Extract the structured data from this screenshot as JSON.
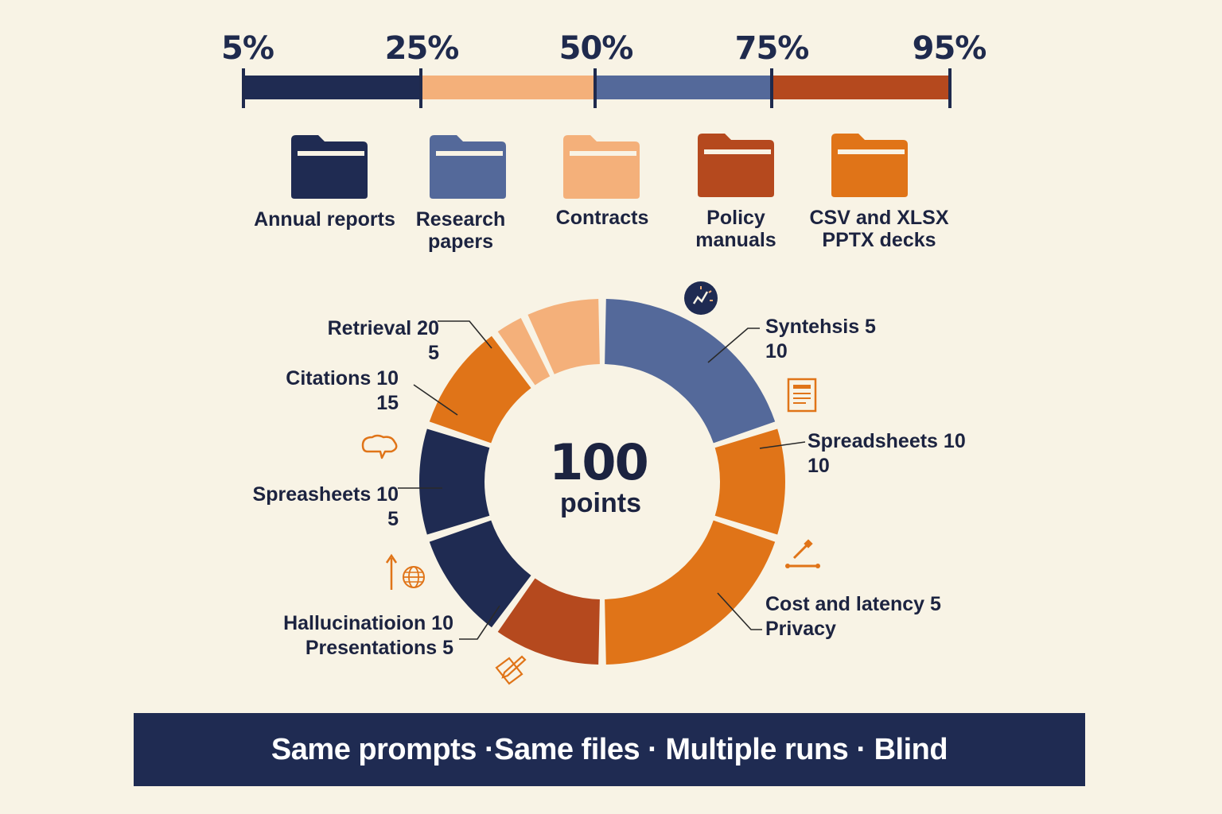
{
  "colors": {
    "navy": "#1f2b52",
    "peach": "#f4b07a",
    "slate": "#54699a",
    "rust": "#b5491e",
    "orange": "#e07418",
    "background": "#f8f3e5"
  },
  "scale": {
    "labels": [
      "5%",
      "25%",
      "50%",
      "75%",
      "95%"
    ]
  },
  "folders": [
    {
      "label": "Annual reports",
      "color": "#1f2b52"
    },
    {
      "label": "Research\npapers",
      "color": "#54699a"
    },
    {
      "label": "Contracts",
      "color": "#f4b07a"
    },
    {
      "label": "Policy\nmanuals",
      "color": "#b5491e"
    },
    {
      "label": "CSV and XLSX\nPPTX decks",
      "color": "#e07418"
    }
  ],
  "chart_data": {
    "type": "pie",
    "total_value": "100",
    "total_unit": "points",
    "annotations": [
      {
        "line1": "Retrieval 20",
        "line2": "5"
      },
      {
        "line1": "Citations 10",
        "line2": "15"
      },
      {
        "line1": "Spreasheets 10",
        "line2": "5"
      },
      {
        "line1": "Hallucinatioion 10",
        "line2": "Presentations 5"
      },
      {
        "line1": "Synteh­sis  5",
        "line2": "10"
      },
      {
        "line1": "Spreadsheets 10",
        "line2": "10"
      },
      {
        "line1": "Cost and latency  5",
        "line2": "Privacy"
      }
    ],
    "slices": [
      {
        "color": "#54699a",
        "value": 20
      },
      {
        "color": "#e07418",
        "value": 10
      },
      {
        "color": "#e07418",
        "value": 20
      },
      {
        "color": "#b5491e",
        "value": 10
      },
      {
        "color": "#1f2b52",
        "value": 10
      },
      {
        "color": "#1f2b52",
        "value": 10
      },
      {
        "color": "#e07418",
        "value": 10
      },
      {
        "color": "#f4b07a",
        "value": 3
      },
      {
        "color": "#f4b07a",
        "value": 7
      }
    ]
  },
  "icons": [
    "clock-chart-icon",
    "document-icon",
    "speech-bubbles-icon",
    "tools-icon",
    "arrow-up-icon",
    "globe-icon",
    "pencil-paper-icon"
  ],
  "footer": {
    "text": "Same prompts ·Same files · Multiple  runs · Blind"
  }
}
